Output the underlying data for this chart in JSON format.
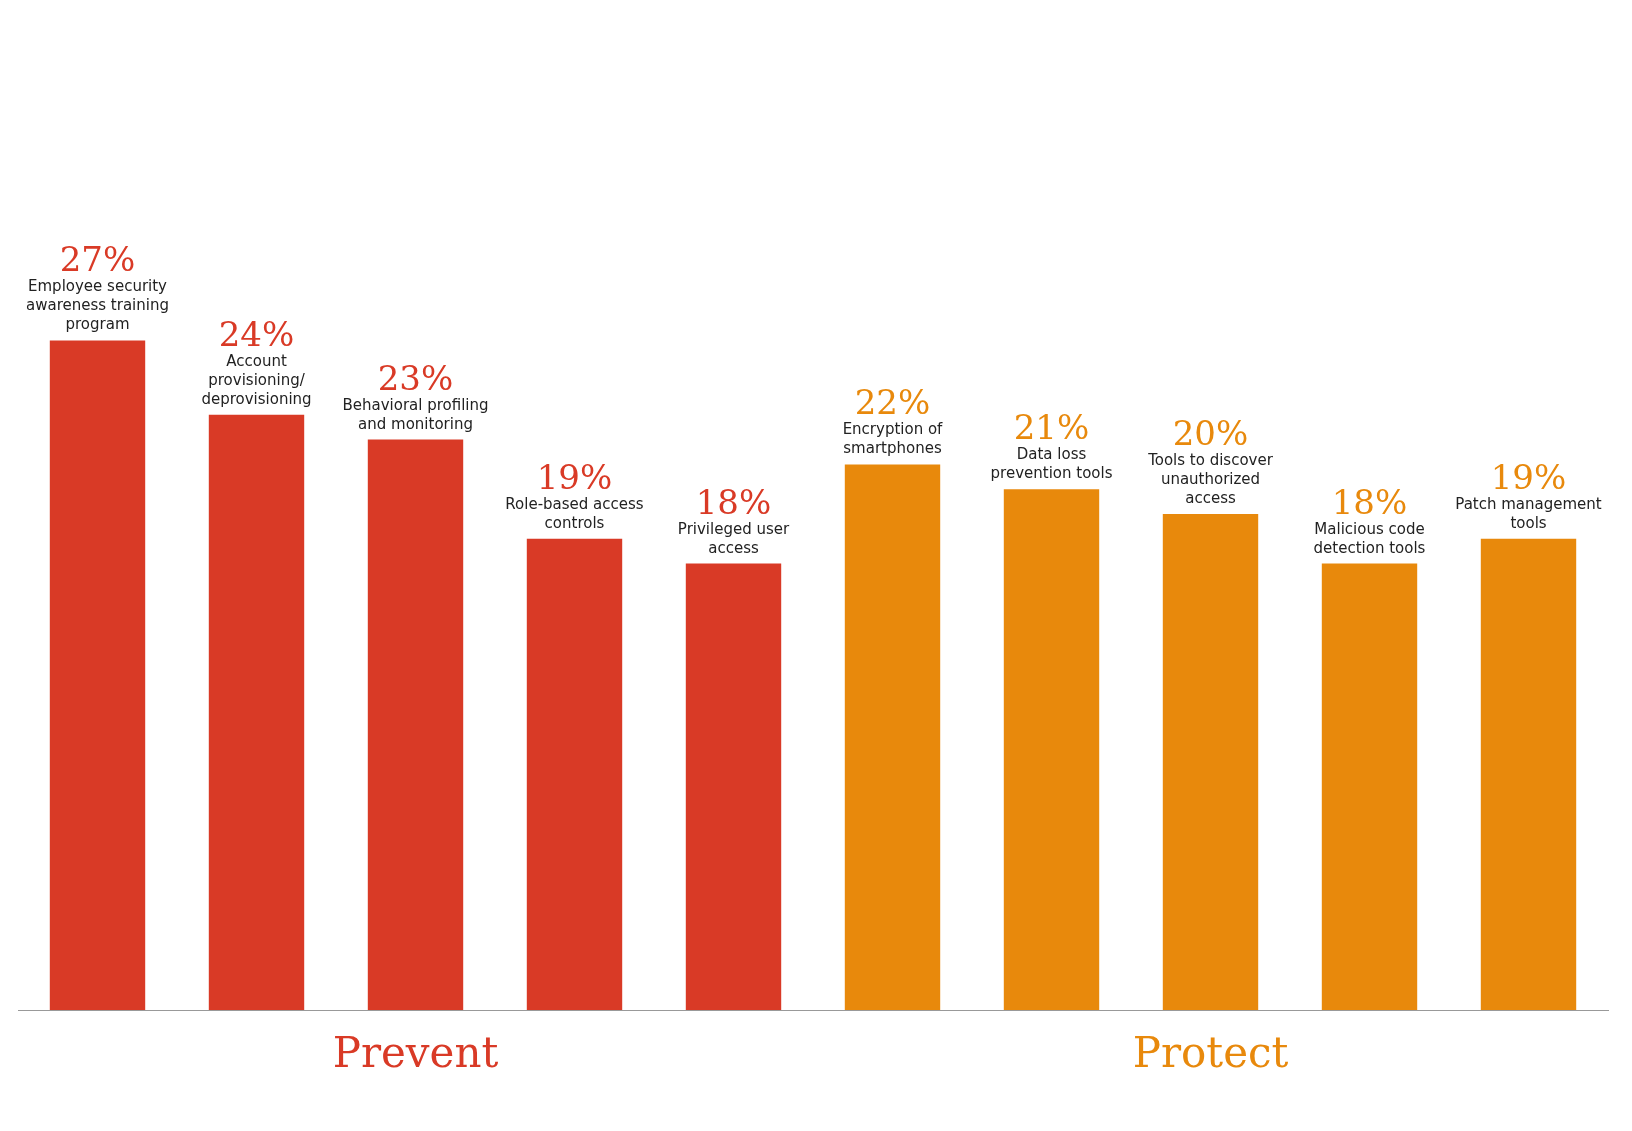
{
  "chart_data": {
    "type": "bar",
    "categories": [
      "Employee security awareness training program",
      "Account provisioning/ deprovisioning",
      "Behavioral profiling and monitoring",
      "Role-based access controls",
      "Privileged user access",
      "Encryption of smartphones",
      "Data loss prevention tools",
      "Tools to discover unauthorized access",
      "Malicious code detection tools",
      "Patch management tools"
    ],
    "series": [
      {
        "name": "Prevent",
        "color": "#d93a26",
        "values": [
          27,
          24,
          23,
          19,
          18,
          null,
          null,
          null,
          null,
          null
        ],
        "value_labels": [
          "27%",
          "24%",
          "23%",
          "19%",
          "18%",
          null,
          null,
          null,
          null,
          null
        ]
      },
      {
        "name": "Protect",
        "color": "#e8890c",
        "values": [
          null,
          null,
          null,
          null,
          null,
          22,
          21,
          20,
          18,
          19
        ],
        "value_labels": [
          null,
          null,
          null,
          null,
          null,
          "22%",
          "21%",
          "20%",
          "18%",
          "19%"
        ]
      }
    ],
    "legend": false,
    "grid": false
  }
}
